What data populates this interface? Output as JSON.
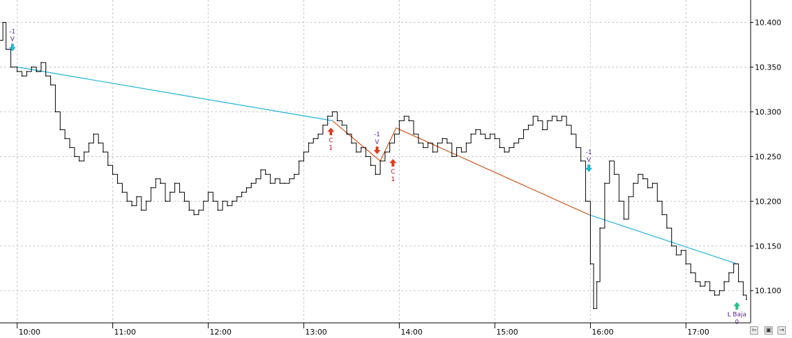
{
  "chart_data": {
    "type": "line",
    "title": "",
    "xlabel": "",
    "ylabel": "",
    "x_ticks": [
      "10:00",
      "11:00",
      "12:00",
      "13:00",
      "14:00",
      "15:00",
      "16:00",
      "17:00"
    ],
    "x_range": [
      "09:45",
      "17:38"
    ],
    "y_ticks": [
      "10.400",
      "10.350",
      "10.300",
      "10.250",
      "10.200",
      "10.150",
      "10.100"
    ],
    "ylim": [
      10.064,
      10.425
    ],
    "y_axis_position": "right",
    "grid": true,
    "series": [
      {
        "color": "#000000",
        "points": [
          [
            "09:45",
            10.35
          ],
          [
            "09:48",
            10.38
          ],
          [
            "09:51",
            10.4
          ],
          [
            "09:53",
            10.37
          ],
          [
            "09:56",
            10.35
          ],
          [
            "10:00",
            10.345
          ],
          [
            "10:03",
            10.34
          ],
          [
            "10:06",
            10.345
          ],
          [
            "10:09",
            10.35
          ],
          [
            "10:12",
            10.345
          ],
          [
            "10:15",
            10.355
          ],
          [
            "10:18",
            10.34
          ],
          [
            "10:21",
            10.33
          ],
          [
            "10:24",
            10.3
          ],
          [
            "10:27",
            10.28
          ],
          [
            "10:30",
            10.27
          ],
          [
            "10:33",
            10.26
          ],
          [
            "10:36",
            10.25
          ],
          [
            "10:39",
            10.245
          ],
          [
            "10:42",
            10.255
          ],
          [
            "10:45",
            10.265
          ],
          [
            "10:48",
            10.275
          ],
          [
            "10:51",
            10.265
          ],
          [
            "10:54",
            10.255
          ],
          [
            "10:57",
            10.24
          ],
          [
            "11:00",
            10.23
          ],
          [
            "11:03",
            10.22
          ],
          [
            "11:06",
            10.21
          ],
          [
            "11:09",
            10.2
          ],
          [
            "11:12",
            10.195
          ],
          [
            "11:15",
            10.205
          ],
          [
            "11:18",
            10.19
          ],
          [
            "11:21",
            10.2
          ],
          [
            "11:24",
            10.215
          ],
          [
            "11:27",
            10.225
          ],
          [
            "11:30",
            10.22
          ],
          [
            "11:33",
            10.2
          ],
          [
            "11:36",
            10.21
          ],
          [
            "11:39",
            10.22
          ],
          [
            "11:42",
            10.21
          ],
          [
            "11:45",
            10.2
          ],
          [
            "11:48",
            10.19
          ],
          [
            "11:51",
            10.185
          ],
          [
            "11:54",
            10.19
          ],
          [
            "11:57",
            10.2
          ],
          [
            "12:00",
            10.21
          ],
          [
            "12:03",
            10.2
          ],
          [
            "12:06",
            10.19
          ],
          [
            "12:09",
            10.2
          ],
          [
            "12:12",
            10.195
          ],
          [
            "12:15",
            10.2
          ],
          [
            "12:18",
            10.205
          ],
          [
            "12:21",
            10.21
          ],
          [
            "12:24",
            10.215
          ],
          [
            "12:27",
            10.22
          ],
          [
            "12:30",
            10.225
          ],
          [
            "12:33",
            10.235
          ],
          [
            "12:36",
            10.23
          ],
          [
            "12:39",
            10.22
          ],
          [
            "12:42",
            10.225
          ],
          [
            "12:45",
            10.22
          ],
          [
            "12:48",
            10.22
          ],
          [
            "12:51",
            10.225
          ],
          [
            "12:54",
            10.23
          ],
          [
            "12:57",
            10.245
          ],
          [
            "13:00",
            10.255
          ],
          [
            "13:03",
            10.265
          ],
          [
            "13:06",
            10.27
          ],
          [
            "13:09",
            10.275
          ],
          [
            "13:12",
            10.285
          ],
          [
            "13:15",
            10.295
          ],
          [
            "13:18",
            10.3
          ],
          [
            "13:21",
            10.29
          ],
          [
            "13:24",
            10.285
          ],
          [
            "13:27",
            10.275
          ],
          [
            "13:30",
            10.265
          ],
          [
            "13:33",
            10.255
          ],
          [
            "13:36",
            10.26
          ],
          [
            "13:39",
            10.25
          ],
          [
            "13:42",
            10.24
          ],
          [
            "13:45",
            10.23
          ],
          [
            "13:48",
            10.245
          ],
          [
            "13:51",
            10.255
          ],
          [
            "13:54",
            10.265
          ],
          [
            "13:57",
            10.275
          ],
          [
            "14:00",
            10.29
          ],
          [
            "14:03",
            10.295
          ],
          [
            "14:06",
            10.29
          ],
          [
            "14:09",
            10.275
          ],
          [
            "14:12",
            10.265
          ],
          [
            "14:15",
            10.26
          ],
          [
            "14:18",
            10.265
          ],
          [
            "14:21",
            10.255
          ],
          [
            "14:24",
            10.265
          ],
          [
            "14:27",
            10.27
          ],
          [
            "14:30",
            10.265
          ],
          [
            "14:33",
            10.25
          ],
          [
            "14:36",
            10.26
          ],
          [
            "14:39",
            10.255
          ],
          [
            "14:42",
            10.265
          ],
          [
            "14:45",
            10.275
          ],
          [
            "14:48",
            10.28
          ],
          [
            "14:51",
            10.275
          ],
          [
            "14:54",
            10.27
          ],
          [
            "14:57",
            10.275
          ],
          [
            "15:00",
            10.27
          ],
          [
            "15:03",
            10.26
          ],
          [
            "15:06",
            10.255
          ],
          [
            "15:09",
            10.26
          ],
          [
            "15:12",
            10.265
          ],
          [
            "15:15",
            10.27
          ],
          [
            "15:18",
            10.28
          ],
          [
            "15:21",
            10.285
          ],
          [
            "15:24",
            10.295
          ],
          [
            "15:27",
            10.29
          ],
          [
            "15:30",
            10.28
          ],
          [
            "15:33",
            10.29
          ],
          [
            "15:36",
            10.295
          ],
          [
            "15:39",
            10.29
          ],
          [
            "15:42",
            10.295
          ],
          [
            "15:45",
            10.285
          ],
          [
            "15:48",
            10.275
          ],
          [
            "15:51",
            10.26
          ],
          [
            "15:54",
            10.245
          ],
          [
            "15:57",
            10.2
          ],
          [
            "16:00",
            10.13
          ],
          [
            "16:02",
            10.08
          ],
          [
            "16:04",
            10.11
          ],
          [
            "16:06",
            10.17
          ],
          [
            "16:09",
            10.22
          ],
          [
            "16:12",
            10.245
          ],
          [
            "16:15",
            10.23
          ],
          [
            "16:18",
            10.2
          ],
          [
            "16:21",
            10.18
          ],
          [
            "16:24",
            10.205
          ],
          [
            "16:27",
            10.22
          ],
          [
            "16:30",
            10.23
          ],
          [
            "16:33",
            10.225
          ],
          [
            "16:36",
            10.215
          ],
          [
            "16:39",
            10.22
          ],
          [
            "16:42",
            10.2
          ],
          [
            "16:45",
            10.185
          ],
          [
            "16:48",
            10.17
          ],
          [
            "16:51",
            10.15
          ],
          [
            "16:54",
            10.14
          ],
          [
            "16:57",
            10.145
          ],
          [
            "17:00",
            10.13
          ],
          [
            "17:03",
            10.12
          ],
          [
            "17:06",
            10.11
          ],
          [
            "17:09",
            10.105
          ],
          [
            "17:12",
            10.11
          ],
          [
            "17:15",
            10.1
          ],
          [
            "17:18",
            10.095
          ],
          [
            "17:21",
            10.1
          ],
          [
            "17:24",
            10.11
          ],
          [
            "17:27",
            10.12
          ],
          [
            "17:30",
            10.13
          ],
          [
            "17:33",
            10.11
          ],
          [
            "17:36",
            10.095
          ],
          [
            "17:38",
            10.09
          ]
        ]
      }
    ],
    "trend_lines": [
      {
        "color": "#1fb4d6",
        "points": [
          [
            "10:00",
            10.35
          ],
          [
            "13:18",
            10.29
          ]
        ]
      },
      {
        "color": "#1fb4d6",
        "points": [
          [
            "15:59",
            10.185
          ],
          [
            "17:32",
            10.13
          ]
        ]
      },
      {
        "color": "#c8541a",
        "points": [
          [
            "13:18",
            10.29
          ],
          [
            "13:48",
            10.245
          ],
          [
            "13:58",
            10.282
          ],
          [
            "15:59",
            10.185
          ]
        ]
      }
    ],
    "markers": [
      {
        "time": "09:57",
        "value": 10.37,
        "direction": "down",
        "arrow_color": "#1fb4d6",
        "text_color": "#5a1d8a",
        "labels": [
          "-1",
          "V"
        ]
      },
      {
        "time": "13:17",
        "value": 10.28,
        "direction": "up",
        "arrow_color": "#e23b1c",
        "text_color": "#c0001a",
        "labels": [
          "C",
          "1"
        ]
      },
      {
        "time": "13:46",
        "value": 10.255,
        "direction": "down",
        "arrow_color": "#e23b1c",
        "text_color": "#5a1d8a",
        "labels": [
          "-1",
          "V"
        ]
      },
      {
        "time": "13:56",
        "value": 10.245,
        "direction": "up",
        "arrow_color": "#e23b1c",
        "text_color": "#c0001a",
        "labels": [
          "C",
          "1"
        ]
      },
      {
        "time": "15:59",
        "value": 10.235,
        "direction": "down",
        "arrow_color": "#1fb4d6",
        "text_color": "#5a1d8a",
        "labels": [
          "-1",
          "V"
        ]
      },
      {
        "time": "17:32",
        "value": 10.085,
        "direction": "up",
        "arrow_color": "#2dbf8c",
        "text_color": "#5a1d8a",
        "labels": [
          "L Baja",
          "0"
        ]
      }
    ],
    "colors": {
      "background": "#ffffff",
      "grid": "#c8c8c8",
      "axis": "#000000",
      "price": "#000000"
    }
  },
  "toolbar": {
    "icons": [
      "scroll-left-icon",
      "save-icon",
      "dock-icon"
    ]
  }
}
